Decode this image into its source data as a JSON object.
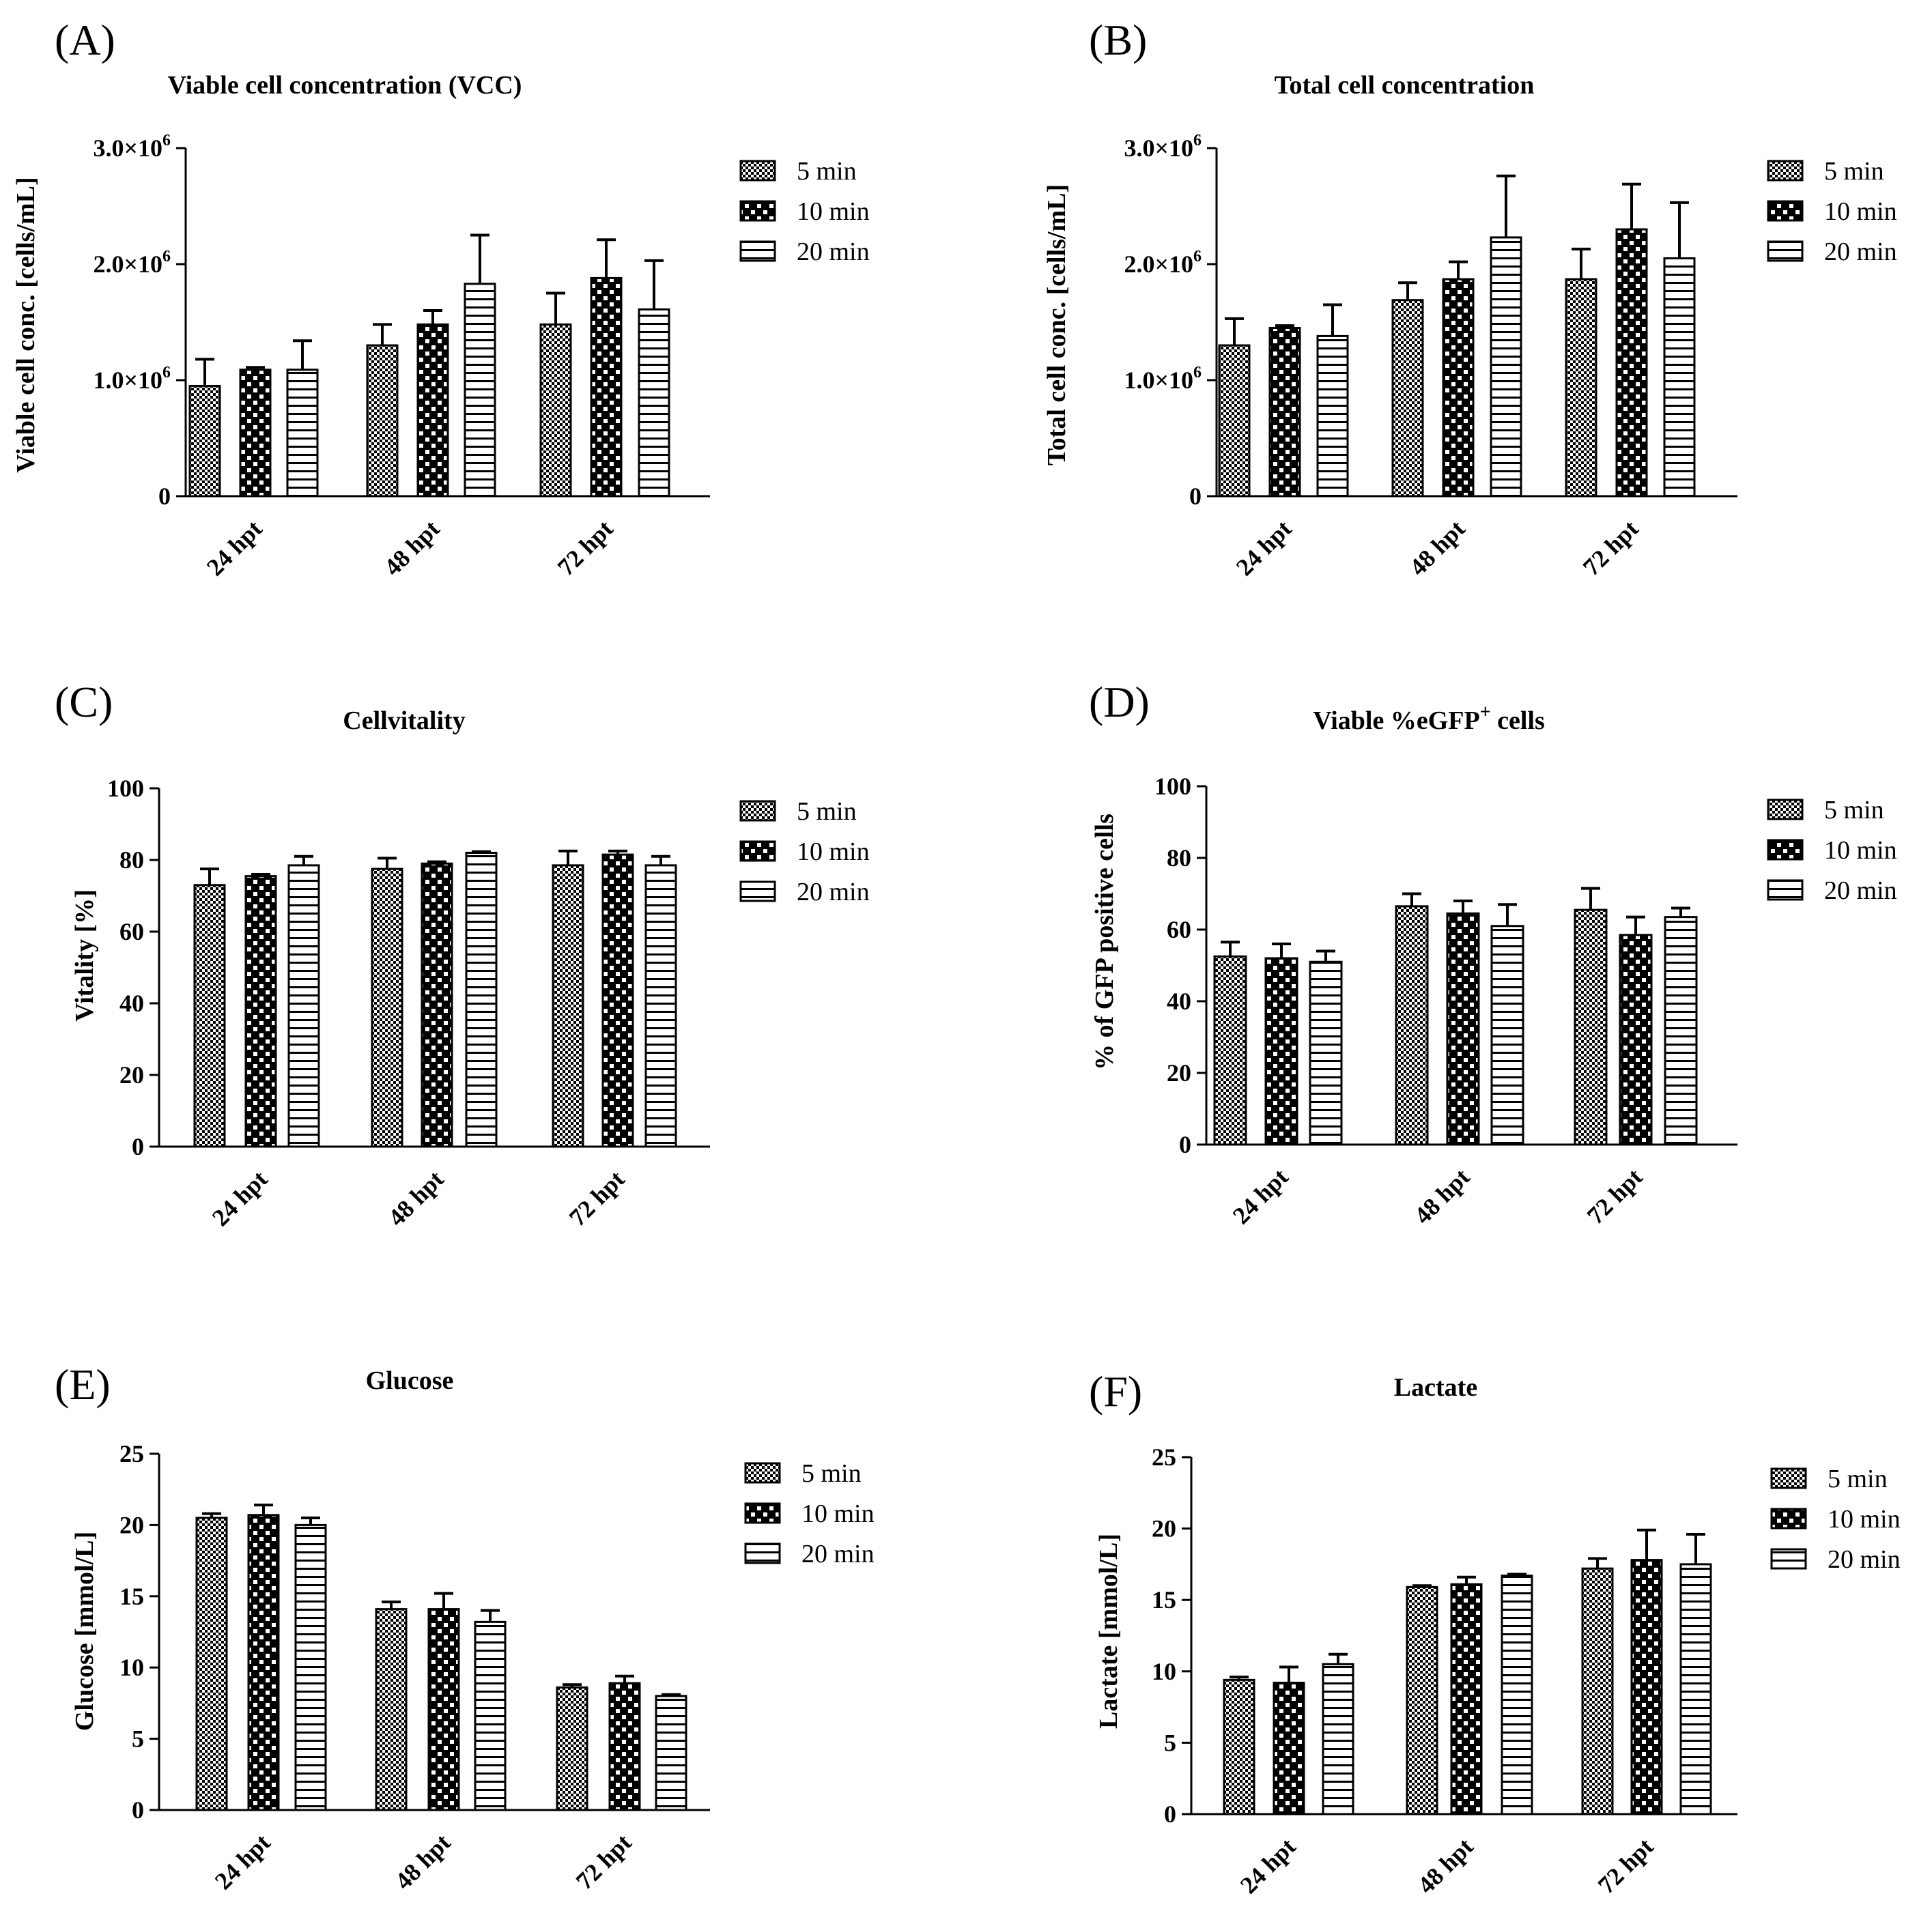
{
  "figure": {
    "hatch_colors": {
      "ink": "#000000",
      "paper": "#ffffff"
    }
  },
  "chart_data": [
    {
      "panel": "(A)",
      "type": "bar",
      "title": "Viable cell concentration (VCC)",
      "xlabel": "",
      "ylabel": "Viable cell conc. [cells/mL]",
      "categories": [
        "24 hpt",
        "48 hpt",
        "72 hpt"
      ],
      "ylim": [
        0,
        3000000
      ],
      "yticks": [
        {
          "value": 0,
          "label": "0",
          "sup": ""
        },
        {
          "value": 1000000,
          "label": "1.0×10",
          "sup": "6"
        },
        {
          "value": 2000000,
          "label": "2.0×10",
          "sup": "6"
        },
        {
          "value": 3000000,
          "label": "3.0×10",
          "sup": "6"
        }
      ],
      "series": [
        {
          "name": "5 min",
          "pattern": "fine",
          "values": [
            950000,
            1300000,
            1480000
          ],
          "errors": [
            230000,
            180000,
            270000
          ]
        },
        {
          "name": "10 min",
          "pattern": "check",
          "values": [
            1090000,
            1480000,
            1880000
          ],
          "errors": [
            20000,
            120000,
            330000
          ]
        },
        {
          "name": "20 min",
          "pattern": "hlines",
          "values": [
            1090000,
            1830000,
            1610000
          ],
          "errors": [
            250000,
            420000,
            420000
          ]
        }
      ]
    },
    {
      "panel": "(B)",
      "type": "bar",
      "title": "Total cell concentration",
      "xlabel": "",
      "ylabel": "Total cell conc. [cells/mL]",
      "categories": [
        "24 hpt",
        "48 hpt",
        "72 hpt"
      ],
      "ylim": [
        0,
        3000000
      ],
      "yticks": [
        {
          "value": 0,
          "label": "0",
          "sup": ""
        },
        {
          "value": 1000000,
          "label": "1.0×10",
          "sup": "6"
        },
        {
          "value": 2000000,
          "label": "2.0×10",
          "sup": "6"
        },
        {
          "value": 3000000,
          "label": "3.0×10",
          "sup": "6"
        }
      ],
      "series": [
        {
          "name": "5 min",
          "pattern": "fine",
          "values": [
            1300000,
            1690000,
            1870000
          ],
          "errors": [
            230000,
            150000,
            260000
          ]
        },
        {
          "name": "10 min",
          "pattern": "check",
          "values": [
            1450000,
            1870000,
            2300000
          ],
          "errors": [
            20000,
            150000,
            390000
          ]
        },
        {
          "name": "20 min",
          "pattern": "hlines",
          "values": [
            1380000,
            2230000,
            2050000
          ],
          "errors": [
            270000,
            530000,
            480000
          ]
        }
      ]
    },
    {
      "panel": "(C)",
      "type": "bar",
      "title": "Cellvitality",
      "xlabel": "",
      "ylabel": "Vitality [%]",
      "categories": [
        "24 hpt",
        "48 hpt",
        "72 hpt"
      ],
      "ylim": [
        0,
        100
      ],
      "yticks": [
        {
          "value": 0,
          "label": "0",
          "sup": ""
        },
        {
          "value": 20,
          "label": "20",
          "sup": ""
        },
        {
          "value": 40,
          "label": "40",
          "sup": ""
        },
        {
          "value": 60,
          "label": "60",
          "sup": ""
        },
        {
          "value": 80,
          "label": "80",
          "sup": ""
        },
        {
          "value": 100,
          "label": "100",
          "sup": ""
        }
      ],
      "series": [
        {
          "name": "5 min",
          "pattern": "fine",
          "values": [
            73,
            77.5,
            78.5
          ],
          "errors": [
            4.5,
            3,
            4
          ]
        },
        {
          "name": "10 min",
          "pattern": "check",
          "values": [
            75.5,
            79,
            81.5
          ],
          "errors": [
            0.5,
            0.5,
            1
          ]
        },
        {
          "name": "20 min",
          "pattern": "hlines",
          "values": [
            78.5,
            82,
            78.5
          ],
          "errors": [
            2.5,
            0.3,
            2.5
          ]
        }
      ]
    },
    {
      "panel": "(D)",
      "type": "bar",
      "title": "Viable %eGFP",
      "title_sup": "+",
      "title_after": " cells",
      "xlabel": "",
      "ylabel": "% of GFP positive cells",
      "categories": [
        "24 hpt",
        "48 hpt",
        "72 hpt"
      ],
      "ylim": [
        0,
        100
      ],
      "yticks": [
        {
          "value": 0,
          "label": "0",
          "sup": ""
        },
        {
          "value": 20,
          "label": "20",
          "sup": ""
        },
        {
          "value": 40,
          "label": "40",
          "sup": ""
        },
        {
          "value": 60,
          "label": "60",
          "sup": ""
        },
        {
          "value": 80,
          "label": "80",
          "sup": ""
        },
        {
          "value": 100,
          "label": "100",
          "sup": ""
        }
      ],
      "series": [
        {
          "name": "5 min",
          "pattern": "fine",
          "values": [
            52.5,
            66.5,
            65.5
          ],
          "errors": [
            4,
            3.5,
            6
          ]
        },
        {
          "name": "10 min",
          "pattern": "check",
          "values": [
            52,
            64.5,
            58.5
          ],
          "errors": [
            4,
            3.5,
            5
          ]
        },
        {
          "name": "20 min",
          "pattern": "hlines",
          "values": [
            51,
            61,
            63.5
          ],
          "errors": [
            3,
            6,
            2.5
          ]
        }
      ]
    },
    {
      "panel": "(E)",
      "type": "bar",
      "title": "Glucose",
      "xlabel": "",
      "ylabel": "Glucose [mmol/L]",
      "categories": [
        "24 hpt",
        "48 hpt",
        "72 hpt"
      ],
      "ylim": [
        0,
        25
      ],
      "yticks": [
        {
          "value": 0,
          "label": "0",
          "sup": ""
        },
        {
          "value": 5,
          "label": "5",
          "sup": ""
        },
        {
          "value": 10,
          "label": "10",
          "sup": ""
        },
        {
          "value": 15,
          "label": "15",
          "sup": ""
        },
        {
          "value": 20,
          "label": "20",
          "sup": ""
        },
        {
          "value": 25,
          "label": "25",
          "sup": ""
        }
      ],
      "series": [
        {
          "name": "5 min",
          "pattern": "fine",
          "values": [
            20.5,
            14.1,
            8.6
          ],
          "errors": [
            0.3,
            0.5,
            0.2
          ]
        },
        {
          "name": "10 min",
          "pattern": "check",
          "values": [
            20.7,
            14.1,
            8.9
          ],
          "errors": [
            0.7,
            1.1,
            0.5
          ]
        },
        {
          "name": "20 min",
          "pattern": "hlines",
          "values": [
            20,
            13.2,
            8
          ],
          "errors": [
            0.5,
            0.8,
            0.1
          ]
        }
      ]
    },
    {
      "panel": "(F)",
      "type": "bar",
      "title": "Lactate",
      "xlabel": "",
      "ylabel": "Lactate [mmol/L]",
      "categories": [
        "24 hpt",
        "48 hpt",
        "72 hpt"
      ],
      "ylim": [
        0,
        25
      ],
      "yticks": [
        {
          "value": 0,
          "label": "0",
          "sup": ""
        },
        {
          "value": 5,
          "label": "5",
          "sup": ""
        },
        {
          "value": 10,
          "label": "10",
          "sup": ""
        },
        {
          "value": 15,
          "label": "15",
          "sup": ""
        },
        {
          "value": 20,
          "label": "20",
          "sup": ""
        },
        {
          "value": 25,
          "label": "25",
          "sup": ""
        }
      ],
      "series": [
        {
          "name": "5 min",
          "pattern": "fine",
          "values": [
            9.4,
            15.9,
            17.2
          ],
          "errors": [
            0.2,
            0.1,
            0.7
          ]
        },
        {
          "name": "10 min",
          "pattern": "check",
          "values": [
            9.2,
            16.1,
            17.8
          ],
          "errors": [
            1.1,
            0.5,
            2.1
          ]
        },
        {
          "name": "20 min",
          "pattern": "hlines",
          "values": [
            10.5,
            16.7,
            17.5
          ],
          "errors": [
            0.7,
            0.1,
            2.1
          ]
        }
      ]
    }
  ]
}
